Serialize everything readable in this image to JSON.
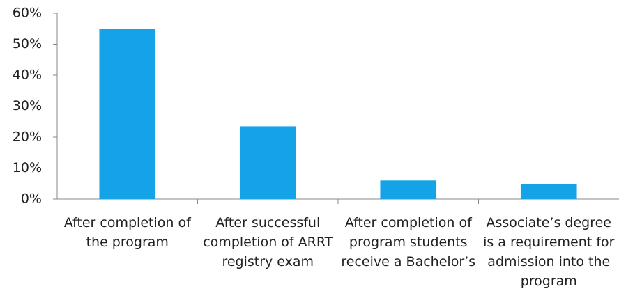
{
  "chart_data": {
    "type": "bar",
    "categories": [
      "After completion of the program",
      "After successful completion of ARRT registry exam",
      "After completion of program students receive a Bachelor’s",
      "Associate’s degree is a requirement for admission into the program"
    ],
    "values": [
      55,
      23.5,
      6,
      4.8
    ],
    "color": "#13a3e6",
    "ylim": [
      0,
      60
    ],
    "yticks": [
      {
        "value": 0,
        "label": "0%"
      },
      {
        "value": 10,
        "label": "10%"
      },
      {
        "value": 20,
        "label": "20%"
      },
      {
        "value": 30,
        "label": "30%"
      },
      {
        "value": 40,
        "label": "40%"
      },
      {
        "value": 50,
        "label": "50%"
      },
      {
        "value": 60,
        "label": "60%"
      }
    ],
    "grid": false
  }
}
